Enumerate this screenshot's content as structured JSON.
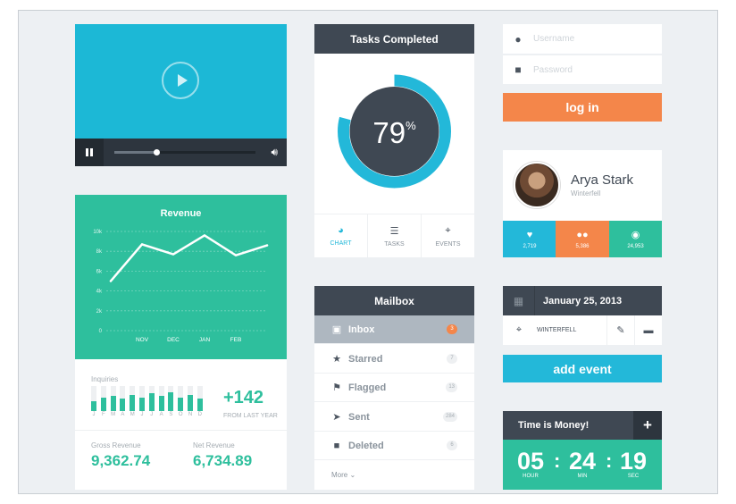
{
  "video": {
    "progress": 0.3,
    "play_icon": "play-icon",
    "pause_icon": "pause-icon",
    "volume_icon": "volume-icon"
  },
  "revenue": {
    "title": "Revenue",
    "chart_data": {
      "type": "line",
      "title": "Revenue",
      "x": [
        "",
        "NOV",
        "DEC",
        "JAN",
        "FEB",
        ""
      ],
      "series": [
        {
          "values": [
            5,
            8.7,
            7.7,
            9.6,
            7.6,
            8.6
          ]
        }
      ],
      "yticks": [
        "10k",
        "8k",
        "6k",
        "4k",
        "2k",
        "0"
      ],
      "ylim": [
        0,
        10
      ],
      "grid": true
    },
    "inquiries": {
      "label": "Inquiries",
      "months": [
        "J",
        "F",
        "M",
        "A",
        "M",
        "J",
        "J",
        "A",
        "S",
        "O",
        "N",
        "D"
      ],
      "values": [
        0.4,
        0.55,
        0.6,
        0.5,
        0.65,
        0.55,
        0.7,
        0.6,
        0.75,
        0.55,
        0.65,
        0.5
      ],
      "max": [
        1,
        1,
        1,
        1,
        1,
        1,
        1,
        1,
        1,
        1,
        1,
        1
      ],
      "delta": "+142",
      "delta_sub": "FROM LAST YEAR"
    },
    "gross_label": "Gross Revenue",
    "gross_value": "9,362.74",
    "net_label": "Net Revenue",
    "net_value": "6,734.89"
  },
  "tasks": {
    "title": "Tasks Completed",
    "percent_value": 79,
    "percent_number": "79",
    "percent_sign": "%",
    "tabs": [
      {
        "label": "CHART",
        "icon": "pie-chart-icon"
      },
      {
        "label": "TASKS",
        "icon": "list-icon"
      },
      {
        "label": "EVENTS",
        "icon": "map-pin-icon"
      }
    ]
  },
  "mailbox": {
    "title": "Mailbox",
    "items": [
      {
        "label": "Inbox",
        "count": "3",
        "icon": "inbox-icon"
      },
      {
        "label": "Starred",
        "count": "7",
        "icon": "star-icon"
      },
      {
        "label": "Flagged",
        "count": "13",
        "icon": "flag-icon"
      },
      {
        "label": "Sent",
        "count": "284",
        "icon": "send-icon"
      },
      {
        "label": "Deleted",
        "count": "6",
        "icon": "trash-icon"
      }
    ],
    "more": "More ⌄"
  },
  "login": {
    "username_placeholder": "Username",
    "password_placeholder": "Password",
    "button": "log in",
    "accent": "#f4864a"
  },
  "profile": {
    "name": "Arya Stark",
    "location": "Winterfell",
    "stats": [
      {
        "value": "2,719",
        "icon": "heart-icon",
        "color": "#23b8d9"
      },
      {
        "value": "5,386",
        "icon": "users-icon",
        "color": "#f4864a"
      },
      {
        "value": "24,953",
        "icon": "eye-icon",
        "color": "#2ebf9d"
      }
    ]
  },
  "event": {
    "date": "January 25, 2013",
    "location": "WINTERFELL",
    "add_button": "add event",
    "accent": "#23b8d9"
  },
  "timer": {
    "title": "Time is Money!",
    "hours": "05",
    "minutes": "24",
    "seconds": "19",
    "hour_label": "HOUR",
    "min_label": "MIN",
    "sec_label": "SEC"
  }
}
